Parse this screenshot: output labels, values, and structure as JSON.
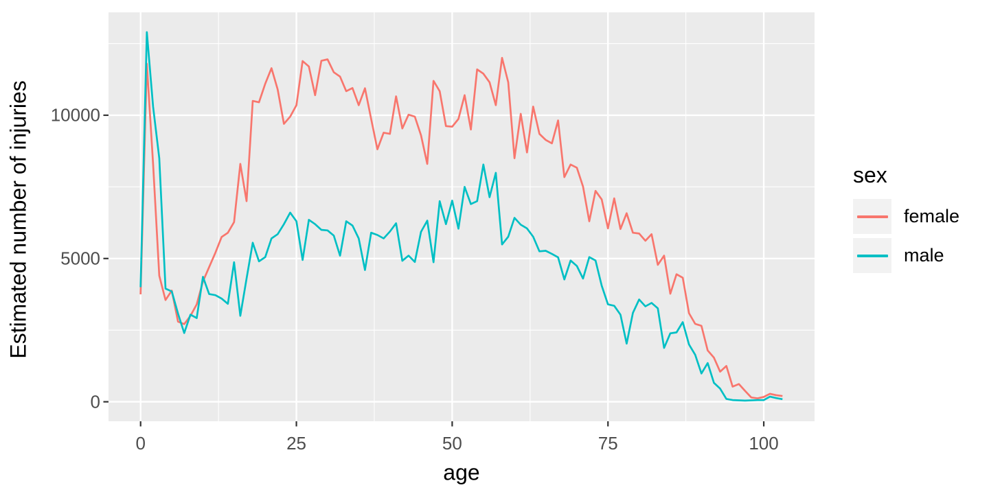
{
  "style": {
    "background": "#FFFFFF",
    "panel_background": "#EBEBEB",
    "grid_color": "#FFFFFF",
    "axis_tick_color": "#333333",
    "tick_label_color": "#4D4D4D",
    "text_color": "#000000",
    "legend_key_background": "#F2F2F2"
  },
  "chart_data": {
    "type": "line",
    "title": "",
    "xlabel": "age",
    "ylabel": "Estimated number of injuries",
    "legend_title": "sex",
    "legend_position": "right",
    "grid": "on",
    "xlim": [
      -5.15,
      108.15
    ],
    "ylim": [
      -680,
      13590
    ],
    "x_major_ticks": [
      0,
      25,
      50,
      75,
      100
    ],
    "y_major_ticks": [
      0,
      5000,
      10000
    ],
    "x_minor_gridlines": [
      12.5,
      37.5,
      62.5,
      87.5
    ],
    "y_minor_gridlines": [
      2500,
      7500,
      12500
    ],
    "x": [
      0,
      1,
      2,
      3,
      4,
      5,
      6,
      7,
      8,
      9,
      10,
      11,
      12,
      13,
      14,
      15,
      16,
      17,
      18,
      19,
      20,
      21,
      22,
      23,
      24,
      25,
      26,
      27,
      28,
      29,
      30,
      31,
      32,
      33,
      34,
      35,
      36,
      37,
      38,
      39,
      40,
      41,
      42,
      43,
      44,
      45,
      46,
      47,
      48,
      49,
      50,
      51,
      52,
      53,
      54,
      55,
      56,
      57,
      58,
      59,
      60,
      61,
      62,
      63,
      64,
      65,
      66,
      67,
      68,
      69,
      70,
      71,
      72,
      73,
      74,
      75,
      76,
      77,
      78,
      79,
      80,
      81,
      82,
      83,
      84,
      85,
      86,
      87,
      88,
      89,
      90,
      91,
      92,
      93,
      94,
      95,
      96,
      97,
      98,
      99,
      100,
      101,
      102,
      103
    ],
    "series": [
      {
        "name": "female",
        "color": "#F8766D",
        "values": [
          3750,
          11800,
          8300,
          4400,
          3550,
          3880,
          2800,
          2710,
          3000,
          3400,
          4200,
          4700,
          5200,
          5750,
          5900,
          6270,
          8300,
          7000,
          10500,
          10450,
          11100,
          11640,
          10900,
          9700,
          9950,
          10350,
          11890,
          11700,
          10700,
          11900,
          11950,
          11500,
          11350,
          10840,
          10950,
          10350,
          10940,
          9870,
          8810,
          9390,
          9350,
          10660,
          9540,
          10020,
          9950,
          9300,
          8300,
          11200,
          10840,
          9620,
          9600,
          9870,
          10700,
          9500,
          11600,
          11450,
          11150,
          10350,
          12000,
          11150,
          8500,
          10050,
          8700,
          10300,
          9350,
          9140,
          9020,
          9820,
          7840,
          8280,
          8170,
          7510,
          6300,
          7360,
          7060,
          6050,
          7100,
          6030,
          6580,
          5900,
          5870,
          5620,
          5850,
          4780,
          5100,
          3770,
          4450,
          4330,
          3090,
          2720,
          2650,
          1790,
          1540,
          1050,
          1250,
          530,
          620,
          380,
          150,
          120,
          170,
          280,
          230,
          200
        ]
      },
      {
        "name": "male",
        "color": "#00BFC4",
        "values": [
          4000,
          12900,
          10300,
          8500,
          3950,
          3850,
          3080,
          2400,
          3040,
          2920,
          4360,
          3760,
          3720,
          3600,
          3420,
          4870,
          3000,
          4300,
          5550,
          4900,
          5050,
          5700,
          5850,
          6200,
          6600,
          6300,
          4950,
          6350,
          6200,
          6000,
          5980,
          5800,
          5100,
          6300,
          6150,
          5700,
          4600,
          5900,
          5820,
          5700,
          5940,
          6230,
          4920,
          5100,
          4880,
          5930,
          6320,
          4870,
          7000,
          6200,
          7020,
          6040,
          7500,
          6900,
          7000,
          8280,
          7140,
          7990,
          5490,
          5760,
          6420,
          6180,
          6050,
          5760,
          5250,
          5270,
          5160,
          5040,
          4270,
          4930,
          4740,
          4300,
          5050,
          4930,
          4050,
          3400,
          3350,
          3040,
          2030,
          3100,
          3570,
          3330,
          3450,
          3260,
          1880,
          2390,
          2420,
          2780,
          2000,
          1640,
          990,
          1350,
          660,
          460,
          100,
          60,
          50,
          40,
          50,
          60,
          60,
          180,
          130,
          90
        ]
      }
    ]
  }
}
